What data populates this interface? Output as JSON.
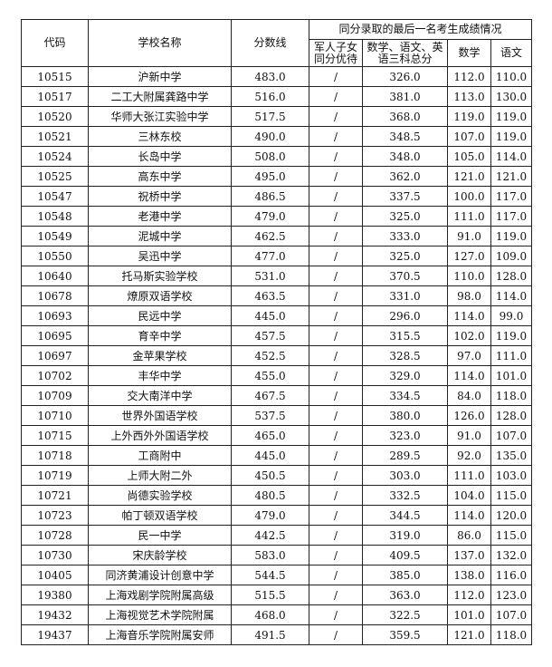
{
  "header": {
    "code": "代码",
    "name": "学校名称",
    "score": "分数线",
    "group": "同分录取的最后一名考生成绩情况",
    "military_l1": "军人子女",
    "military_l2": "同分优待",
    "total_l1": "数学、语文、英",
    "total_l2": "语三科总分",
    "math": "数学",
    "chinese": "语文"
  },
  "rows": [
    {
      "code": "10515",
      "name": "沪新中学",
      "score": "483.0",
      "mil": "/",
      "total": "326.0",
      "math": "112.0",
      "chinese": "110.0"
    },
    {
      "code": "10517",
      "name": "二工大附属龚路中学",
      "score": "516.0",
      "mil": "/",
      "total": "381.0",
      "math": "113.0",
      "chinese": "130.0"
    },
    {
      "code": "10520",
      "name": "华师大张江实验中学",
      "score": "517.5",
      "mil": "/",
      "total": "368.0",
      "math": "119.0",
      "chinese": "119.0"
    },
    {
      "code": "10521",
      "name": "三林东校",
      "score": "490.0",
      "mil": "/",
      "total": "348.5",
      "math": "107.0",
      "chinese": "119.0"
    },
    {
      "code": "10524",
      "name": "长岛中学",
      "score": "508.0",
      "mil": "/",
      "total": "348.0",
      "math": "105.0",
      "chinese": "114.0"
    },
    {
      "code": "10525",
      "name": "高东中学",
      "score": "495.0",
      "mil": "/",
      "total": "362.0",
      "math": "121.0",
      "chinese": "121.0"
    },
    {
      "code": "10547",
      "name": "祝桥中学",
      "score": "486.5",
      "mil": "/",
      "total": "337.5",
      "math": "100.0",
      "chinese": "117.0"
    },
    {
      "code": "10548",
      "name": "老港中学",
      "score": "479.0",
      "mil": "/",
      "total": "325.0",
      "math": "111.0",
      "chinese": "117.0"
    },
    {
      "code": "10549",
      "name": "泥城中学",
      "score": "462.5",
      "mil": "/",
      "total": "333.0",
      "math": "91.0",
      "chinese": "119.0"
    },
    {
      "code": "10550",
      "name": "吴迅中学",
      "score": "477.0",
      "mil": "/",
      "total": "325.0",
      "math": "127.0",
      "chinese": "109.0"
    },
    {
      "code": "10640",
      "name": "托马斯实验学校",
      "score": "531.0",
      "mil": "/",
      "total": "370.5",
      "math": "110.0",
      "chinese": "128.0"
    },
    {
      "code": "10678",
      "name": "燎原双语学校",
      "score": "463.5",
      "mil": "/",
      "total": "331.0",
      "math": "98.0",
      "chinese": "114.0"
    },
    {
      "code": "10693",
      "name": "民远中学",
      "score": "445.0",
      "mil": "/",
      "total": "296.0",
      "math": "114.0",
      "chinese": "99.0"
    },
    {
      "code": "10695",
      "name": "育辛中学",
      "score": "457.5",
      "mil": "/",
      "total": "315.5",
      "math": "102.0",
      "chinese": "119.0"
    },
    {
      "code": "10697",
      "name": "金苹果学校",
      "score": "452.5",
      "mil": "/",
      "total": "328.5",
      "math": "97.0",
      "chinese": "111.0"
    },
    {
      "code": "10702",
      "name": "丰华中学",
      "score": "455.0",
      "mil": "/",
      "total": "329.0",
      "math": "114.0",
      "chinese": "101.0"
    },
    {
      "code": "10709",
      "name": "交大南洋中学",
      "score": "467.5",
      "mil": "/",
      "total": "334.5",
      "math": "84.0",
      "chinese": "118.0"
    },
    {
      "code": "10710",
      "name": "世界外国语学校",
      "score": "537.5",
      "mil": "/",
      "total": "380.0",
      "math": "126.0",
      "chinese": "128.0"
    },
    {
      "code": "10715",
      "name": "上外西外外国语学校",
      "score": "465.0",
      "mil": "/",
      "total": "323.0",
      "math": "91.0",
      "chinese": "107.0"
    },
    {
      "code": "10718",
      "name": "工商附中",
      "score": "445.0",
      "mil": "/",
      "total": "289.5",
      "math": "92.0",
      "chinese": "135.0"
    },
    {
      "code": "10719",
      "name": "上师大附二外",
      "score": "450.5",
      "mil": "/",
      "total": "303.0",
      "math": "111.0",
      "chinese": "103.0"
    },
    {
      "code": "10721",
      "name": "尚德实验学校",
      "score": "480.5",
      "mil": "/",
      "total": "332.5",
      "math": "104.0",
      "chinese": "115.0"
    },
    {
      "code": "10723",
      "name": "帕丁顿双语学校",
      "score": "479.0",
      "mil": "/",
      "total": "344.5",
      "math": "114.0",
      "chinese": "120.0"
    },
    {
      "code": "10728",
      "name": "民一中学",
      "score": "442.5",
      "mil": "/",
      "total": "319.0",
      "math": "86.0",
      "chinese": "115.0"
    },
    {
      "code": "10730",
      "name": "宋庆龄学校",
      "score": "583.0",
      "mil": "/",
      "total": "409.5",
      "math": "137.0",
      "chinese": "132.0"
    },
    {
      "code": "10405",
      "name": "同济黄浦设计创意中学",
      "score": "544.5",
      "mil": "/",
      "total": "385.0",
      "math": "138.0",
      "chinese": "116.0"
    },
    {
      "code": "19380",
      "name": "上海戏剧学院附属高级",
      "score": "515.5",
      "mil": "/",
      "total": "363.0",
      "math": "112.0",
      "chinese": "123.0"
    },
    {
      "code": "19432",
      "name": "上海视觉艺术学院附属",
      "score": "468.0",
      "mil": "/",
      "total": "322.5",
      "math": "101.0",
      "chinese": "107.0"
    },
    {
      "code": "19437",
      "name": "上海音乐学院附属安师",
      "score": "491.5",
      "mil": "/",
      "total": "359.5",
      "math": "121.0",
      "chinese": "118.0"
    }
  ]
}
